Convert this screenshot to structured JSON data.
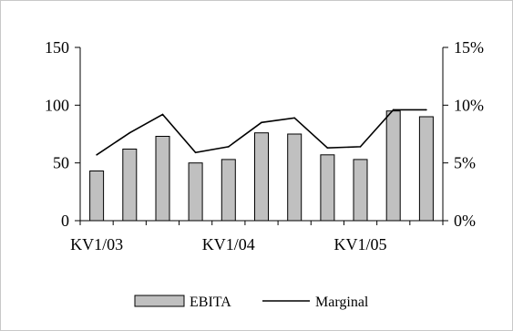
{
  "chart_data": {
    "type": "bar",
    "categories": [
      "",
      "",
      "",
      "",
      "",
      "",
      "",
      "",
      "",
      "",
      ""
    ],
    "x_tick_labels": [
      "KV1/03",
      "KV1/04",
      "KV1/05"
    ],
    "x_tick_label_indices": [
      0,
      4,
      8
    ],
    "series": [
      {
        "name": "EBITA",
        "type": "bar",
        "axis": "left",
        "color": "#c0c0c0",
        "values": [
          43,
          62,
          73,
          50,
          53,
          76,
          75,
          57,
          53,
          95,
          90
        ]
      },
      {
        "name": "Marginal",
        "type": "line",
        "axis": "right",
        "color": "#000000",
        "values": [
          5.7,
          7.6,
          9.2,
          5.9,
          6.4,
          8.5,
          8.9,
          6.3,
          6.4,
          9.6,
          9.6
        ]
      }
    ],
    "y_left": {
      "ylim": [
        0,
        150
      ],
      "ticks": [
        0,
        50,
        100,
        150
      ],
      "tick_labels": [
        "0",
        "50",
        "100",
        "150"
      ]
    },
    "y_right": {
      "ylim": [
        0,
        15
      ],
      "ticks": [
        0,
        5,
        10,
        15
      ],
      "tick_labels": [
        "0%",
        "5%",
        "10%",
        "15%"
      ]
    },
    "legend_position": "bottom",
    "grid": false
  }
}
